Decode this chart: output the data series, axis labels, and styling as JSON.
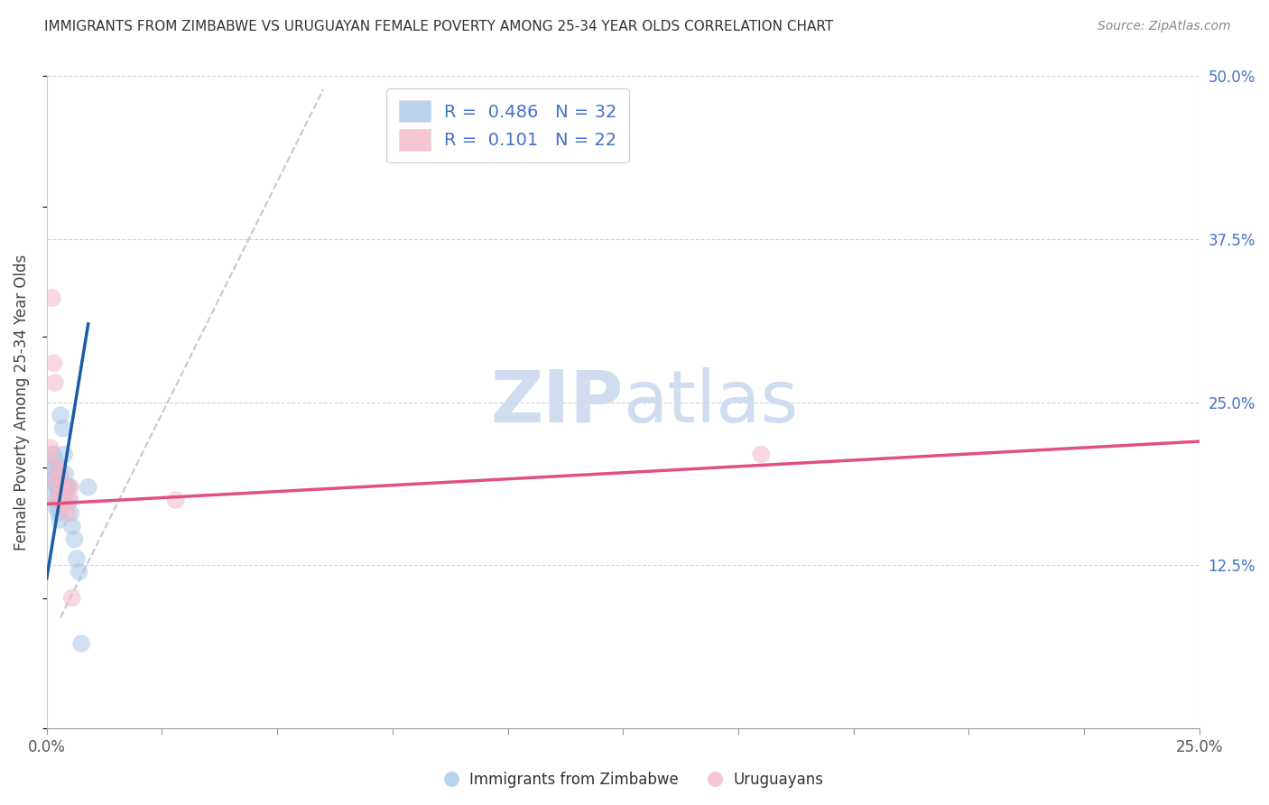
{
  "title": "IMMIGRANTS FROM ZIMBABWE VS URUGUAYAN FEMALE POVERTY AMONG 25-34 YEAR OLDS CORRELATION CHART",
  "source": "Source: ZipAtlas.com",
  "ylabel": "Female Poverty Among 25-34 Year Olds",
  "xlim": [
    0.0,
    0.25
  ],
  "ylim": [
    0.0,
    0.5
  ],
  "r1": 0.486,
  "n1": 32,
  "r2": 0.101,
  "n2": 22,
  "blue_color": "#a8c8e8",
  "pink_color": "#f4b8c8",
  "blue_line_color": "#1a5ca8",
  "pink_line_color": "#e05080",
  "dashed_line_color": "#b8b8d0",
  "watermark_color": "#d0ddf0",
  "legend_label1": "Immigrants from Zimbabwe",
  "legend_label2": "Uruguayans",
  "blue_scatter": [
    [
      0.001,
      0.2
    ],
    [
      0.0012,
      0.19
    ],
    [
      0.0015,
      0.21
    ],
    [
      0.0015,
      0.185
    ],
    [
      0.0018,
      0.195
    ],
    [
      0.0018,
      0.175
    ],
    [
      0.002,
      0.205
    ],
    [
      0.002,
      0.17
    ],
    [
      0.0022,
      0.185
    ],
    [
      0.0022,
      0.175
    ],
    [
      0.0025,
      0.2
    ],
    [
      0.0025,
      0.185
    ],
    [
      0.0025,
      0.165
    ],
    [
      0.0028,
      0.195
    ],
    [
      0.0028,
      0.175
    ],
    [
      0.0028,
      0.16
    ],
    [
      0.003,
      0.24
    ],
    [
      0.0032,
      0.19
    ],
    [
      0.0035,
      0.23
    ],
    [
      0.0038,
      0.21
    ],
    [
      0.004,
      0.195
    ],
    [
      0.0042,
      0.185
    ],
    [
      0.0045,
      0.185
    ],
    [
      0.0048,
      0.185
    ],
    [
      0.005,
      0.175
    ],
    [
      0.0052,
      0.165
    ],
    [
      0.0055,
      0.155
    ],
    [
      0.006,
      0.145
    ],
    [
      0.0065,
      0.13
    ],
    [
      0.007,
      0.12
    ],
    [
      0.0075,
      0.065
    ],
    [
      0.009,
      0.185
    ]
  ],
  "pink_scatter": [
    [
      0.0008,
      0.215
    ],
    [
      0.001,
      0.21
    ],
    [
      0.0012,
      0.33
    ],
    [
      0.0015,
      0.28
    ],
    [
      0.0018,
      0.265
    ],
    [
      0.002,
      0.19
    ],
    [
      0.0022,
      0.175
    ],
    [
      0.0025,
      0.2
    ],
    [
      0.0028,
      0.195
    ],
    [
      0.0028,
      0.185
    ],
    [
      0.003,
      0.175
    ],
    [
      0.0032,
      0.185
    ],
    [
      0.0035,
      0.175
    ],
    [
      0.0038,
      0.17
    ],
    [
      0.004,
      0.185
    ],
    [
      0.0042,
      0.175
    ],
    [
      0.0045,
      0.165
    ],
    [
      0.005,
      0.175
    ],
    [
      0.0052,
      0.185
    ],
    [
      0.0055,
      0.1
    ],
    [
      0.028,
      0.175
    ],
    [
      0.155,
      0.21
    ]
  ],
  "blue_line_x": [
    0.0,
    0.009
  ],
  "blue_line_y": [
    0.115,
    0.31
  ],
  "pink_line_x": [
    0.0,
    0.25
  ],
  "pink_line_y": [
    0.172,
    0.22
  ],
  "dashed_line_x": [
    0.003,
    0.06
  ],
  "dashed_line_y": [
    0.085,
    0.49
  ]
}
